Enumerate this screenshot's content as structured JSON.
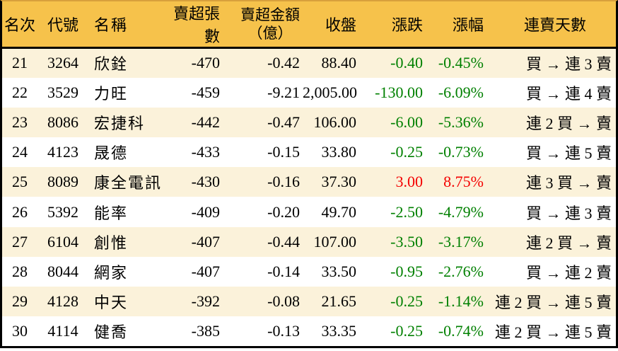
{
  "colors": {
    "header_bg": "#f6c24b",
    "top_strip": "#d8a03c",
    "row_stripe_bg": "#fbf2da",
    "row_plain_bg": "#ffffff",
    "up_text": "#f40000",
    "down_text": "#008000",
    "frame_border": "#000000",
    "text": "#000000"
  },
  "table": {
    "header": {
      "rank": "名次",
      "code": "代號",
      "name": "名稱",
      "net_sell_lots": "賣超張數",
      "net_sell_amount_line1": "賣超金額",
      "net_sell_amount_line2": "（億）",
      "close": "收盤",
      "change": "漲跌",
      "change_pct": "漲幅",
      "streak": "連賣天數"
    }
  },
  "chart_data": {
    "type": "table",
    "columns": [
      "名次",
      "代號",
      "名稱",
      "賣超張數",
      "賣超金額（億）",
      "收盤",
      "漲跌",
      "漲幅",
      "連賣天數"
    ],
    "rows": [
      {
        "rank": "21",
        "code": "3264",
        "name": "欣銓",
        "net_sell_lots": "-470",
        "net_sell_amount": "-0.42",
        "close": "88.40",
        "change": "-0.40",
        "change_pct": "-0.45%",
        "streak": "買 → 連 3 賣",
        "trend": "down"
      },
      {
        "rank": "22",
        "code": "3529",
        "name": "力旺",
        "net_sell_lots": "-459",
        "net_sell_amount": "-9.21",
        "close": "2,005.00",
        "change": "-130.00",
        "change_pct": "-6.09%",
        "streak": "買 → 連 4 賣",
        "trend": "down"
      },
      {
        "rank": "23",
        "code": "8086",
        "name": "宏捷科",
        "net_sell_lots": "-442",
        "net_sell_amount": "-0.47",
        "close": "106.00",
        "change": "-6.00",
        "change_pct": "-5.36%",
        "streak": "連 2 買 → 賣",
        "trend": "down"
      },
      {
        "rank": "24",
        "code": "4123",
        "name": "晟德",
        "net_sell_lots": "-433",
        "net_sell_amount": "-0.15",
        "close": "33.80",
        "change": "-0.25",
        "change_pct": "-0.73%",
        "streak": "買 → 連 5 賣",
        "trend": "down"
      },
      {
        "rank": "25",
        "code": "8089",
        "name": "康全電訊",
        "net_sell_lots": "-430",
        "net_sell_amount": "-0.16",
        "close": "37.30",
        "change": "3.00",
        "change_pct": "8.75%",
        "streak": "連 3 買 → 賣",
        "trend": "up"
      },
      {
        "rank": "26",
        "code": "5392",
        "name": "能率",
        "net_sell_lots": "-409",
        "net_sell_amount": "-0.20",
        "close": "49.70",
        "change": "-2.50",
        "change_pct": "-4.79%",
        "streak": "買 → 連 3 賣",
        "trend": "down"
      },
      {
        "rank": "27",
        "code": "6104",
        "name": "創惟",
        "net_sell_lots": "-407",
        "net_sell_amount": "-0.44",
        "close": "107.00",
        "change": "-3.50",
        "change_pct": "-3.17%",
        "streak": "連 2 買 → 賣",
        "trend": "down"
      },
      {
        "rank": "28",
        "code": "8044",
        "name": "網家",
        "net_sell_lots": "-407",
        "net_sell_amount": "-0.14",
        "close": "33.50",
        "change": "-0.95",
        "change_pct": "-2.76%",
        "streak": "買 → 連 2 賣",
        "trend": "down"
      },
      {
        "rank": "29",
        "code": "4128",
        "name": "中天",
        "net_sell_lots": "-392",
        "net_sell_amount": "-0.08",
        "close": "21.65",
        "change": "-0.25",
        "change_pct": "-1.14%",
        "streak": "連 2 買 → 連 5 賣",
        "trend": "down"
      },
      {
        "rank": "30",
        "code": "4114",
        "name": "健喬",
        "net_sell_lots": "-385",
        "net_sell_amount": "-0.13",
        "close": "33.35",
        "change": "-0.25",
        "change_pct": "-0.74%",
        "streak": "連 2 買 → 連 5 賣",
        "trend": "down"
      }
    ]
  }
}
